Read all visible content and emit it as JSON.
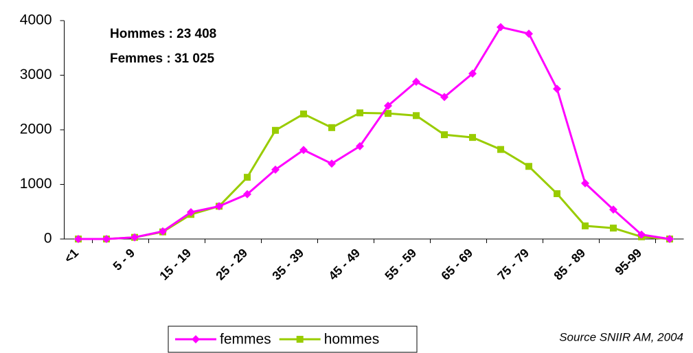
{
  "chart_data": {
    "type": "line",
    "categories": [
      "<1",
      null,
      "5 - 9",
      null,
      "15 - 19",
      null,
      "25 - 29",
      null,
      "35 - 39",
      null,
      "45 - 49",
      null,
      "55 - 59",
      null,
      "65 - 69",
      null,
      "75 - 79",
      null,
      "85 - 89",
      null,
      "95-99",
      null
    ],
    "series": [
      {
        "name": "femmes",
        "color": "#ff00ff",
        "marker": "diamond",
        "values": [
          0,
          0,
          30,
          140,
          490,
          600,
          820,
          1270,
          1630,
          1380,
          1700,
          2440,
          2880,
          2600,
          3030,
          3880,
          3760,
          2750,
          1020,
          540,
          80,
          0
        ]
      },
      {
        "name": "hommes",
        "color": "#99cc00",
        "marker": "square",
        "values": [
          0,
          0,
          30,
          130,
          450,
          600,
          1130,
          1990,
          2290,
          2040,
          2310,
          2300,
          2260,
          1910,
          1860,
          1640,
          1330,
          830,
          240,
          200,
          40,
          0
        ]
      }
    ],
    "ylim": [
      0,
      4000
    ],
    "yticks": [
      0,
      1000,
      2000,
      3000,
      4000
    ],
    "annotations": [
      "Hommes : 23 408",
      "Femmes : 31 025"
    ],
    "source": "Source SNIIR AM, 2004",
    "legend": "bottom"
  }
}
